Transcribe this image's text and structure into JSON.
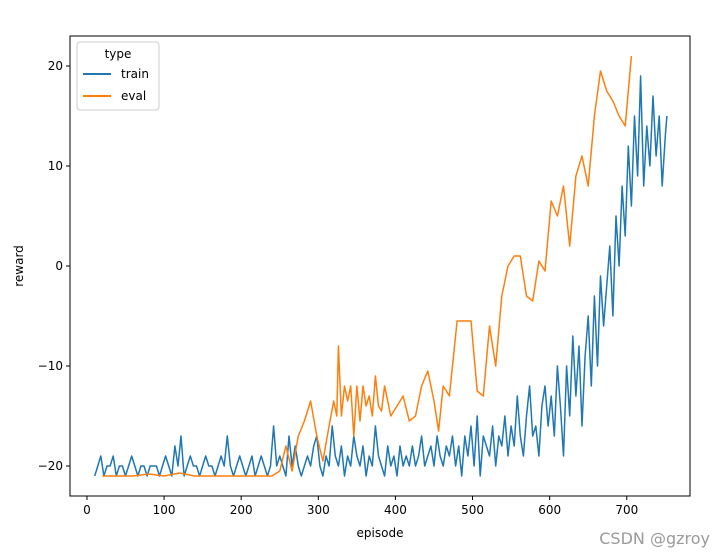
{
  "chart_data": {
    "type": "line",
    "xlabel": "episode",
    "ylabel": "reward",
    "xlim": [
      -22,
      782
    ],
    "ylim": [
      -23,
      23
    ],
    "xticks": [
      0,
      100,
      200,
      300,
      400,
      500,
      600,
      700
    ],
    "yticks": [
      -20,
      -10,
      0,
      10,
      20
    ],
    "xtick_labels": [
      "0",
      "100",
      "200",
      "300",
      "400",
      "500",
      "600",
      "700"
    ],
    "ytick_labels": [
      "−20",
      "−10",
      "0",
      "10",
      "20"
    ],
    "grid": false,
    "legend": {
      "title": "type",
      "placement": "top-left"
    },
    "series": [
      {
        "name": "train",
        "color": "#1f77b4",
        "points": [
          [
            10,
            -21
          ],
          [
            14,
            -20
          ],
          [
            18,
            -19
          ],
          [
            22,
            -21
          ],
          [
            26,
            -20
          ],
          [
            30,
            -20
          ],
          [
            34,
            -19
          ],
          [
            38,
            -21
          ],
          [
            42,
            -20
          ],
          [
            46,
            -20
          ],
          [
            50,
            -21
          ],
          [
            54,
            -20
          ],
          [
            58,
            -19
          ],
          [
            62,
            -20
          ],
          [
            66,
            -21
          ],
          [
            70,
            -20
          ],
          [
            74,
            -20
          ],
          [
            78,
            -21
          ],
          [
            82,
            -20
          ],
          [
            86,
            -20
          ],
          [
            90,
            -20
          ],
          [
            94,
            -21
          ],
          [
            98,
            -20
          ],
          [
            102,
            -19
          ],
          [
            106,
            -20
          ],
          [
            110,
            -21
          ],
          [
            114,
            -18
          ],
          [
            118,
            -20
          ],
          [
            122,
            -17
          ],
          [
            126,
            -21
          ],
          [
            130,
            -20
          ],
          [
            134,
            -19
          ],
          [
            138,
            -20
          ],
          [
            142,
            -20
          ],
          [
            146,
            -21
          ],
          [
            150,
            -20
          ],
          [
            154,
            -19
          ],
          [
            158,
            -20
          ],
          [
            162,
            -20
          ],
          [
            166,
            -21
          ],
          [
            170,
            -20
          ],
          [
            174,
            -19
          ],
          [
            178,
            -20
          ],
          [
            182,
            -17
          ],
          [
            186,
            -20
          ],
          [
            190,
            -21
          ],
          [
            194,
            -20
          ],
          [
            198,
            -19
          ],
          [
            202,
            -20
          ],
          [
            206,
            -21
          ],
          [
            210,
            -20
          ],
          [
            214,
            -19
          ],
          [
            218,
            -21
          ],
          [
            222,
            -20
          ],
          [
            226,
            -19
          ],
          [
            230,
            -20
          ],
          [
            234,
            -21
          ],
          [
            238,
            -20
          ],
          [
            242,
            -16
          ],
          [
            246,
            -20
          ],
          [
            250,
            -19
          ],
          [
            254,
            -20
          ],
          [
            258,
            -21
          ],
          [
            262,
            -17
          ],
          [
            266,
            -20
          ],
          [
            270,
            -18
          ],
          [
            274,
            -20
          ],
          [
            278,
            -21
          ],
          [
            282,
            -20
          ],
          [
            286,
            -19
          ],
          [
            290,
            -20
          ],
          [
            294,
            -18
          ],
          [
            298,
            -17
          ],
          [
            302,
            -20
          ],
          [
            306,
            -21
          ],
          [
            310,
            -19
          ],
          [
            314,
            -20
          ],
          [
            318,
            -16
          ],
          [
            322,
            -19
          ],
          [
            326,
            -20
          ],
          [
            330,
            -18
          ],
          [
            334,
            -21
          ],
          [
            338,
            -19
          ],
          [
            342,
            -20
          ],
          [
            346,
            -17
          ],
          [
            350,
            -19
          ],
          [
            354,
            -20
          ],
          [
            358,
            -18
          ],
          [
            362,
            -21
          ],
          [
            366,
            -19
          ],
          [
            370,
            -20
          ],
          [
            374,
            -16
          ],
          [
            378,
            -19
          ],
          [
            382,
            -20
          ],
          [
            386,
            -21
          ],
          [
            390,
            -18
          ],
          [
            394,
            -20
          ],
          [
            398,
            -19
          ],
          [
            402,
            -21
          ],
          [
            406,
            -18
          ],
          [
            410,
            -20
          ],
          [
            414,
            -19
          ],
          [
            418,
            -20
          ],
          [
            422,
            -18
          ],
          [
            426,
            -20
          ],
          [
            430,
            -19
          ],
          [
            434,
            -17
          ],
          [
            438,
            -20
          ],
          [
            442,
            -19
          ],
          [
            446,
            -18
          ],
          [
            450,
            -20
          ],
          [
            454,
            -17
          ],
          [
            458,
            -19
          ],
          [
            462,
            -20
          ],
          [
            466,
            -18
          ],
          [
            470,
            -19
          ],
          [
            474,
            -17
          ],
          [
            478,
            -20
          ],
          [
            482,
            -18
          ],
          [
            486,
            -21
          ],
          [
            490,
            -17
          ],
          [
            494,
            -19
          ],
          [
            498,
            -16
          ],
          [
            502,
            -20
          ],
          [
            506,
            -15
          ],
          [
            510,
            -21
          ],
          [
            514,
            -17
          ],
          [
            518,
            -18
          ],
          [
            522,
            -19
          ],
          [
            526,
            -16
          ],
          [
            530,
            -20
          ],
          [
            534,
            -17
          ],
          [
            538,
            -18
          ],
          [
            542,
            -15
          ],
          [
            546,
            -19
          ],
          [
            550,
            -16
          ],
          [
            554,
            -18
          ],
          [
            558,
            -13
          ],
          [
            562,
            -17
          ],
          [
            566,
            -19
          ],
          [
            570,
            -15
          ],
          [
            574,
            -12
          ],
          [
            578,
            -17
          ],
          [
            582,
            -16
          ],
          [
            586,
            -19
          ],
          [
            590,
            -14
          ],
          [
            594,
            -12
          ],
          [
            598,
            -16
          ],
          [
            602,
            -13
          ],
          [
            606,
            -17
          ],
          [
            610,
            -10
          ],
          [
            614,
            -14
          ],
          [
            618,
            -19
          ],
          [
            622,
            -10
          ],
          [
            626,
            -15
          ],
          [
            630,
            -7
          ],
          [
            634,
            -13
          ],
          [
            638,
            -8
          ],
          [
            642,
            -16
          ],
          [
            646,
            -9
          ],
          [
            650,
            -5
          ],
          [
            654,
            -12
          ],
          [
            658,
            -3
          ],
          [
            662,
            -10
          ],
          [
            666,
            -1
          ],
          [
            670,
            -6
          ],
          [
            674,
            -2
          ],
          [
            678,
            2
          ],
          [
            682,
            -5
          ],
          [
            686,
            5
          ],
          [
            690,
            0
          ],
          [
            694,
            8
          ],
          [
            698,
            3
          ],
          [
            702,
            12
          ],
          [
            706,
            6
          ],
          [
            710,
            15
          ],
          [
            714,
            9
          ],
          [
            718,
            19
          ],
          [
            722,
            8
          ],
          [
            726,
            14
          ],
          [
            730,
            10
          ],
          [
            734,
            17
          ],
          [
            738,
            11
          ],
          [
            742,
            15
          ],
          [
            746,
            8
          ],
          [
            750,
            13
          ],
          [
            752,
            15
          ]
        ]
      },
      {
        "name": "eval",
        "color": "#ff7f0e",
        "points": [
          [
            20,
            -21
          ],
          [
            40,
            -21
          ],
          [
            60,
            -21
          ],
          [
            80,
            -20.8
          ],
          [
            100,
            -21
          ],
          [
            120,
            -20.7
          ],
          [
            140,
            -21
          ],
          [
            160,
            -21
          ],
          [
            180,
            -21
          ],
          [
            200,
            -21
          ],
          [
            220,
            -21
          ],
          [
            240,
            -21
          ],
          [
            250,
            -20.5
          ],
          [
            258,
            -18
          ],
          [
            266,
            -20.5
          ],
          [
            274,
            -17
          ],
          [
            282,
            -15.5
          ],
          [
            290,
            -13.5
          ],
          [
            298,
            -17
          ],
          [
            306,
            -19.5
          ],
          [
            314,
            -16
          ],
          [
            320,
            -13.5
          ],
          [
            324,
            -15
          ],
          [
            326,
            -8
          ],
          [
            330,
            -15
          ],
          [
            334,
            -12
          ],
          [
            338,
            -13.5
          ],
          [
            342,
            -12
          ],
          [
            346,
            -17
          ],
          [
            350,
            -12
          ],
          [
            354,
            -15.5
          ],
          [
            358,
            -12
          ],
          [
            362,
            -14
          ],
          [
            366,
            -13
          ],
          [
            370,
            -15
          ],
          [
            374,
            -11
          ],
          [
            378,
            -14
          ],
          [
            382,
            -14.5
          ],
          [
            386,
            -12
          ],
          [
            394,
            -15
          ],
          [
            402,
            -14
          ],
          [
            410,
            -13
          ],
          [
            418,
            -15.5
          ],
          [
            426,
            -15
          ],
          [
            434,
            -12
          ],
          [
            442,
            -10.5
          ],
          [
            450,
            -13.5
          ],
          [
            456,
            -16.5
          ],
          [
            462,
            -12
          ],
          [
            470,
            -13
          ],
          [
            480,
            -5.5
          ],
          [
            490,
            -5.5
          ],
          [
            498,
            -5.5
          ],
          [
            506,
            -12.5
          ],
          [
            514,
            -13
          ],
          [
            522,
            -6
          ],
          [
            530,
            -10
          ],
          [
            538,
            -3
          ],
          [
            546,
            0
          ],
          [
            554,
            1
          ],
          [
            562,
            1
          ],
          [
            570,
            -3
          ],
          [
            578,
            -3.5
          ],
          [
            586,
            0.5
          ],
          [
            594,
            -0.5
          ],
          [
            602,
            6.5
          ],
          [
            610,
            5
          ],
          [
            618,
            8
          ],
          [
            626,
            2
          ],
          [
            634,
            9
          ],
          [
            642,
            11
          ],
          [
            650,
            8
          ],
          [
            658,
            15
          ],
          [
            666,
            19.5
          ],
          [
            674,
            17.5
          ],
          [
            682,
            16.5
          ],
          [
            690,
            15
          ],
          [
            698,
            14
          ],
          [
            706,
            21
          ]
        ]
      }
    ]
  },
  "watermark": "CSDN @gzroy"
}
